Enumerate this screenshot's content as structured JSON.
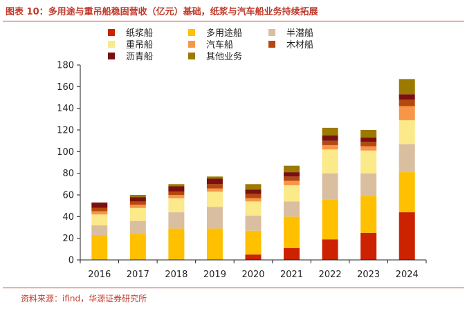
{
  "title": "图表 10：多用途与重吊船稳固营收（亿元）基础，纸浆与汽车船业务持续拓展",
  "source": "资料来源：ifind，华源证券研究所",
  "chart_data": {
    "type": "bar",
    "stacked": true,
    "categories": [
      "2016",
      "2017",
      "2018",
      "2019",
      "2020",
      "2021",
      "2022",
      "2023",
      "2024"
    ],
    "ylim": [
      0,
      180
    ],
    "yticks": [
      0,
      20,
      40,
      60,
      80,
      100,
      120,
      140,
      160,
      180
    ],
    "legend_position": "top",
    "series": [
      {
        "name": "纸浆船",
        "color": "#cc2200",
        "values": [
          0,
          0,
          0,
          0,
          5,
          11,
          19,
          25,
          44
        ]
      },
      {
        "name": "多用途船",
        "color": "#ffc000",
        "values": [
          23,
          24,
          29,
          29,
          22,
          29,
          37,
          34,
          37
        ]
      },
      {
        "name": "半潜船",
        "color": "#d9bfa0",
        "values": [
          9,
          12,
          15,
          20,
          14,
          14,
          24,
          21,
          26
        ]
      },
      {
        "name": "重吊船",
        "color": "#fbe98a",
        "values": [
          10,
          12,
          13,
          14,
          13,
          15,
          22,
          21,
          22
        ]
      },
      {
        "name": "汽车船",
        "color": "#f79646",
        "values": [
          3,
          3,
          3,
          3,
          3,
          4,
          4,
          4,
          13
        ]
      },
      {
        "name": "木材船",
        "color": "#b5480e",
        "values": [
          3,
          3,
          3,
          4,
          4,
          4,
          4,
          4,
          6
        ]
      },
      {
        "name": "沥青船",
        "color": "#7a1010",
        "values": [
          5,
          4,
          5,
          5,
          4,
          4,
          5,
          4,
          5
        ]
      },
      {
        "name": "其他业务",
        "color": "#9c7a00",
        "values": [
          0,
          2,
          2,
          2,
          5,
          6,
          7,
          7,
          14
        ]
      }
    ]
  }
}
